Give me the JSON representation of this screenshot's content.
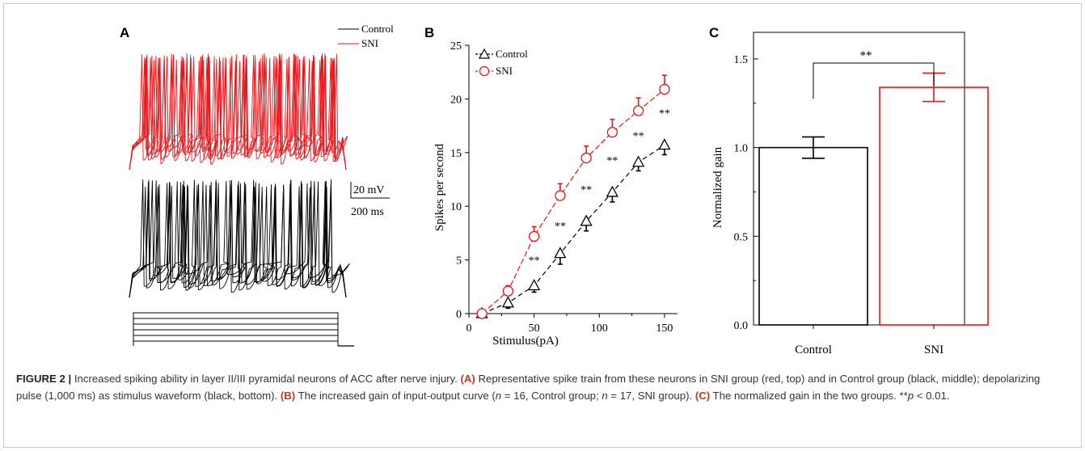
{
  "panelA": {
    "label": "A",
    "legend": [
      {
        "name": "Control",
        "color": "#000000"
      },
      {
        "name": "SNI",
        "color": "#e8161b"
      }
    ],
    "scalebar_v": "20 mV",
    "scalebar_h": "200 ms"
  },
  "panelB": {
    "label": "B",
    "stars": [
      "**",
      "**",
      "**",
      "**",
      "**",
      "**"
    ]
  },
  "panelC": {
    "label": "C",
    "sig": "**"
  },
  "chart_data": [
    {
      "type": "line",
      "xlabel": "Stimulus(pA)",
      "ylabel": "Spikes per second",
      "xlim": [
        0,
        160
      ],
      "ylim": [
        0,
        25
      ],
      "xticks": [
        "0",
        "50",
        "100",
        "150"
      ],
      "yticks": [
        "0",
        "5",
        "10",
        "15",
        "20",
        "25"
      ],
      "x": [
        10,
        30,
        50,
        70,
        90,
        110,
        130,
        150
      ],
      "series": [
        {
          "name": "Control",
          "color": "#000000",
          "marker": "triangle",
          "values": [
            0,
            1,
            2.6,
            5.6,
            8.6,
            11.3,
            14.1,
            15.7
          ],
          "err": [
            0,
            0.5,
            0.6,
            1.0,
            0.9,
            0.9,
            0.8,
            0.9
          ]
        },
        {
          "name": "SNI",
          "color": "#e8161b",
          "marker": "circle",
          "values": [
            0,
            2.1,
            7.2,
            11.0,
            14.5,
            16.9,
            18.9,
            20.9
          ],
          "err": [
            0,
            0.5,
            0.9,
            1.1,
            1.1,
            1.2,
            1.2,
            1.3
          ]
        }
      ],
      "legend": "top-left"
    },
    {
      "type": "bar",
      "ylabel": "Normalized gain",
      "categories": [
        "Control",
        "SNI"
      ],
      "values": [
        1.0,
        1.34
      ],
      "err": [
        0.06,
        0.08
      ],
      "colors": [
        "#000000",
        "#e8161b"
      ],
      "ylim": [
        0,
        1.65
      ],
      "yticks": [
        "0.0",
        "0.5",
        "1.0",
        "1.5"
      ]
    }
  ],
  "caption": {
    "fig": "FIGURE 2 |",
    "text1": " Increased spiking ability in layer II/III pyramidal neurons of ACC after nerve injury. ",
    "a": "(A)",
    "text2": " Representative spike train from these neurons in SNI group (red, top) and in Control group (black, middle); depolarizing pulse (1,000 ms) as stimulus waveform (black, bottom). ",
    "b": "(B)",
    "text3": " The increased gain of input-output curve (",
    "n1": "n",
    "text4": " = 16, Control group; ",
    "n2": "n",
    "text5": " = 17, SNI group). ",
    "c": "(C)",
    "text6": " The normalized gain in the two groups. **",
    "p": "p",
    "text7": " < 0.01."
  }
}
